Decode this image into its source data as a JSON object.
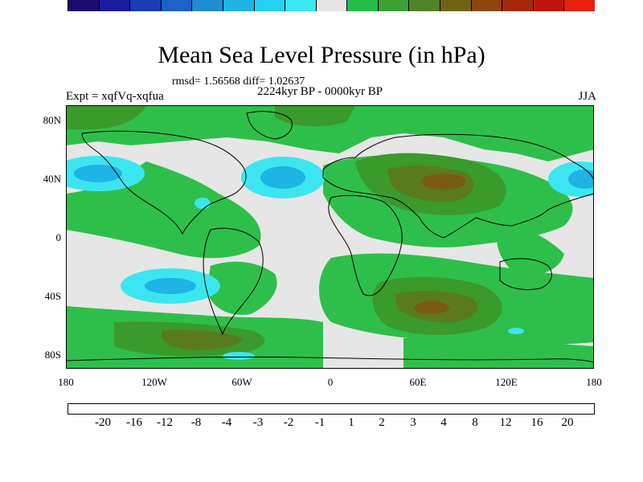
{
  "title": "Mean Sea Level Pressure (in hPa)",
  "stats_text": "rmsd= 1.56568  diff= 1.02637",
  "period_text": "2224kyr BP - 0000kyr BP",
  "experiment_text": "Expt = xqfVq-xqfua",
  "season_text": "JJA",
  "lat_labels": [
    "80N",
    "40N",
    "0",
    "40S",
    "80S"
  ],
  "lon_labels": [
    "180",
    "120W",
    "60W",
    "0",
    "60E",
    "120E",
    "180"
  ],
  "legend": {
    "labels": [
      "-20",
      "-16",
      "-12",
      "-8",
      "-4",
      "-3",
      "-2",
      "-1",
      "1",
      "2",
      "3",
      "4",
      "8",
      "12",
      "16",
      "20"
    ],
    "colors": [
      "#1a0a6e",
      "#1a1aa0",
      "#1a3cb4",
      "#1f5fc8",
      "#1f8cd2",
      "#1eb4e6",
      "#22d2f0",
      "#3ce6f0",
      "#e6e6e6",
      "#23be46",
      "#3ca032",
      "#508228",
      "#6e6414",
      "#8c460f",
      "#a5280a",
      "#be140a",
      "#e61e0a"
    ]
  },
  "field_colors": {
    "ocean_neutral": "#e6e6e6",
    "pos_1_2": "#2ebf4a",
    "pos_2_3": "#3a9a2c",
    "pos_3_4": "#5a7a20",
    "pos_4_8": "#7a5a14",
    "neg_1_2": "#3ce6f0",
    "neg_2_3": "#1eb4e6",
    "coast": "#000000"
  }
}
